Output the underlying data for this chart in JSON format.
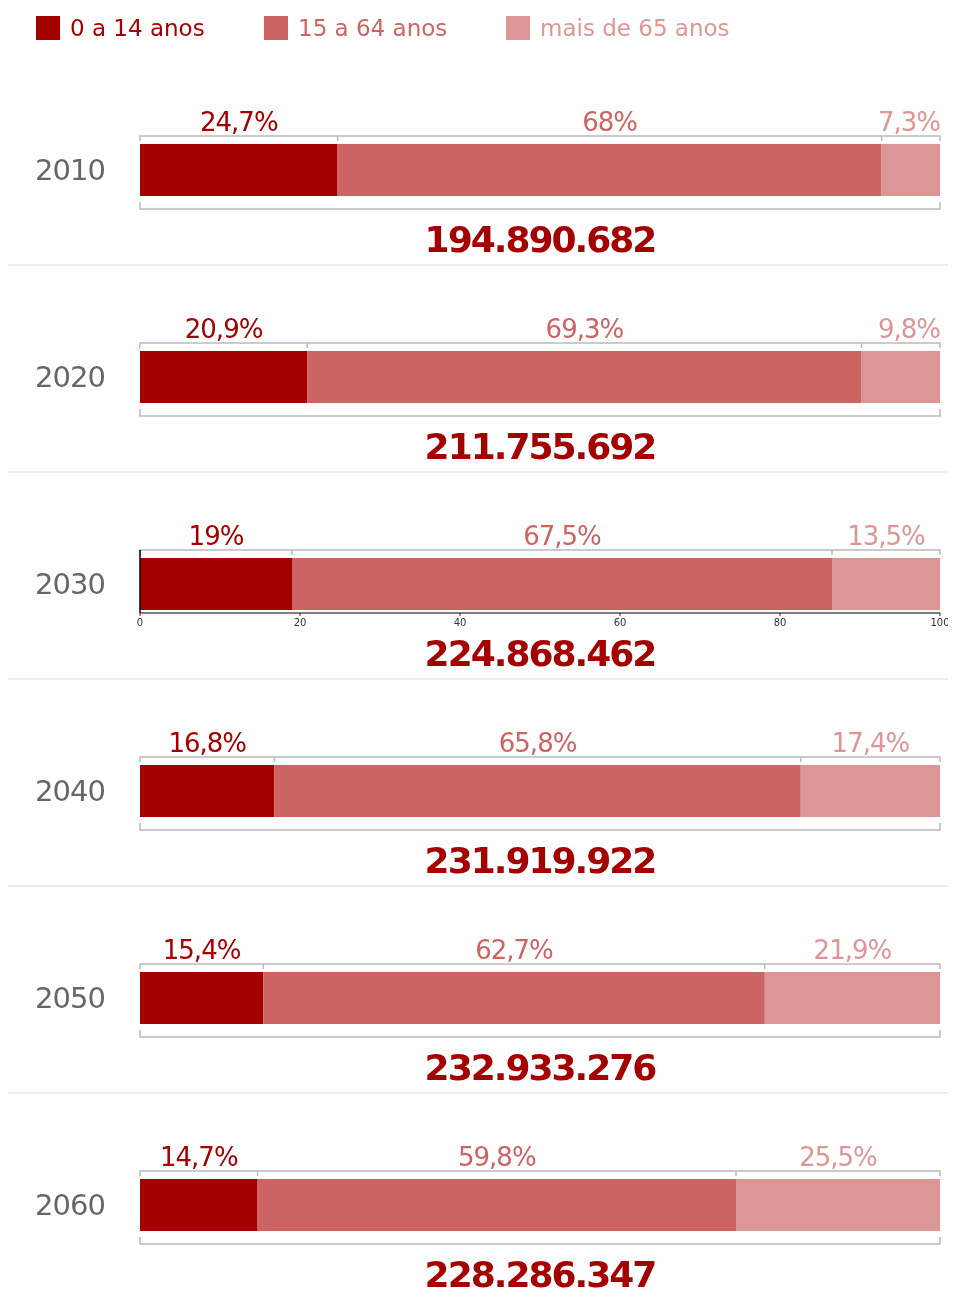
{
  "chart_data": {
    "type": "bar",
    "orientation": "horizontal",
    "stacked": true,
    "legend": "top left",
    "xlim": [
      0,
      100
    ],
    "xticks": [
      0,
      20,
      40,
      60,
      80,
      100
    ],
    "categories": [
      "2010",
      "2020",
      "2030",
      "2040",
      "2050",
      "2060"
    ],
    "series": [
      {
        "name": "0 a 14 anos",
        "color": "#a50000",
        "values": [
          24.7,
          20.9,
          19,
          16.8,
          15.4,
          14.7
        ],
        "value_labels": [
          "24,7%",
          "20,9%",
          "19%",
          "16,8%",
          "15,4%",
          "14,7%"
        ]
      },
      {
        "name": "15 a 64 anos",
        "color": "#cd6464",
        "values": [
          68,
          69.3,
          67.5,
          65.8,
          62.7,
          59.8
        ],
        "value_labels": [
          "68%",
          "69,3%",
          "67,5%",
          "65,8%",
          "62,7%",
          "59,8%"
        ]
      },
      {
        "name": "mais de 65 anos",
        "color": "#dc9696",
        "values": [
          7.3,
          9.8,
          13.5,
          17.4,
          21.9,
          25.5
        ],
        "value_labels": [
          "7,3%",
          "9,8%",
          "13,5%",
          "17,4%",
          "21,9%",
          "25,5%"
        ]
      }
    ],
    "annotations": [
      "194.890.682",
      "211.755.692",
      "224.868.462",
      "231.919.922",
      "232.933.276",
      "228.286.347"
    ]
  }
}
